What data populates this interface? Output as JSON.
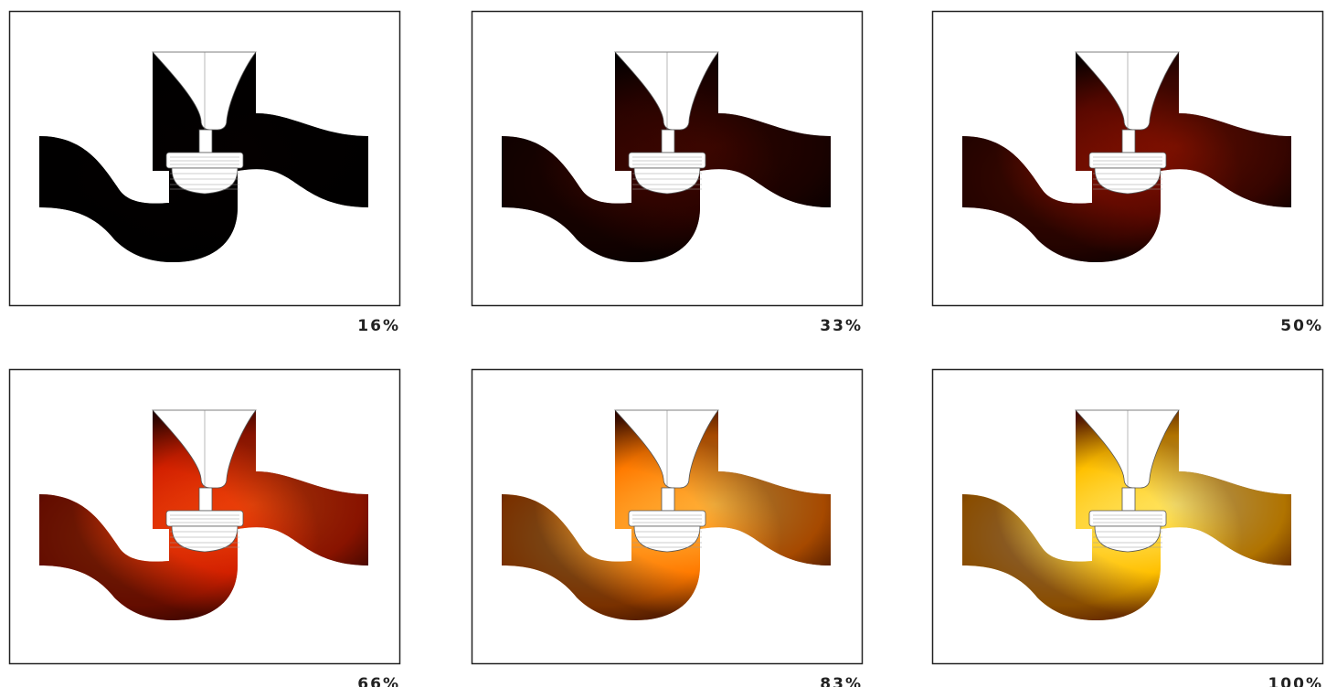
{
  "panels": [
    {
      "label": "16%"
    },
    {
      "label": "33%"
    },
    {
      "label": "50%"
    },
    {
      "label": "66%"
    },
    {
      "label": "83%"
    },
    {
      "label": "100%"
    }
  ]
}
